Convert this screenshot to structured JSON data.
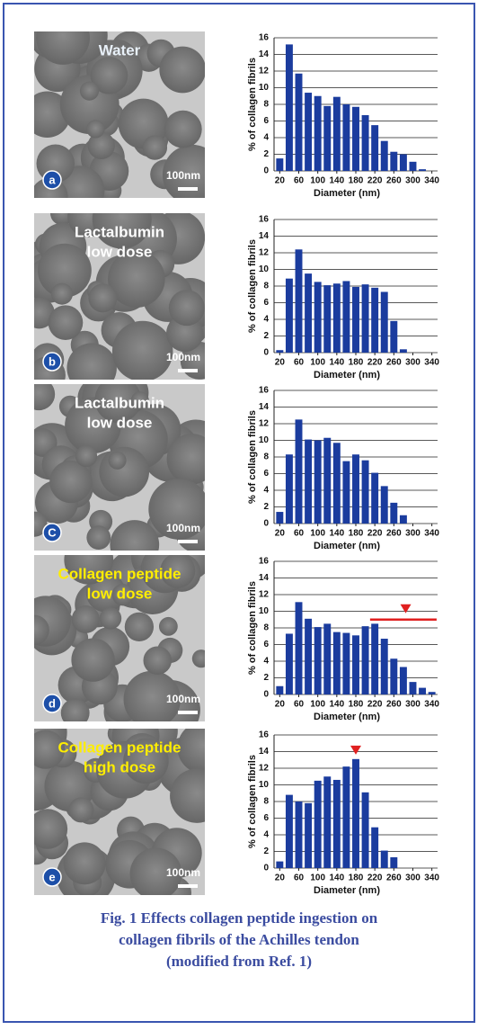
{
  "panels": [
    {
      "image_label": [
        "Water"
      ],
      "label_color": "#e8f0f8",
      "letter": "a",
      "scale": "100nm"
    },
    {
      "image_label": [
        "Lactalbumin",
        "low dose"
      ],
      "label_color": "#ffffff",
      "letter": "b",
      "scale": "100nm"
    },
    {
      "image_label": [
        "Lactalbumin",
        "low dose"
      ],
      "label_color": "#ffffff",
      "letter": "C",
      "scale": "100nm"
    },
    {
      "image_label": [
        "Collagen peptide",
        "low dose"
      ],
      "label_color": "#ffee00",
      "letter": "d",
      "scale": "100nm"
    },
    {
      "image_label": [
        "Collagen peptide",
        "high dose"
      ],
      "label_color": "#ffee00",
      "letter": "e",
      "scale": "100nm"
    }
  ],
  "caption": [
    "Fig. 1 Effects collagen peptide ingestion on",
    "collagen fibrils of the Achilles tendon",
    "(modified from Ref. 1)"
  ],
  "chart_data": [
    {
      "type": "bar",
      "ylabel": "% of collagen fibrils",
      "xlabel": "Diameter (nm)",
      "color": "#1b3c9e",
      "x": [
        20,
        40,
        60,
        80,
        100,
        120,
        140,
        160,
        180,
        200,
        220,
        240,
        260,
        280,
        300,
        320
      ],
      "values": [
        1.5,
        15.2,
        11.7,
        9.4,
        9.0,
        7.8,
        8.9,
        8.0,
        7.7,
        6.7,
        5.5,
        3.6,
        2.3,
        2.0,
        1.1,
        0.2
      ],
      "xlim": [
        8,
        352
      ],
      "xticks": [
        20,
        60,
        100,
        140,
        180,
        220,
        260,
        300,
        340
      ],
      "ylim": [
        0,
        16
      ],
      "yticks": [
        0,
        2,
        4,
        6,
        8,
        10,
        12,
        14,
        16
      ],
      "grid": true
    },
    {
      "type": "bar",
      "ylabel": "% of collagen fibrils",
      "xlabel": "Diameter (nm)",
      "color": "#1b3c9e",
      "x": [
        20,
        40,
        60,
        80,
        100,
        120,
        140,
        160,
        180,
        200,
        220,
        240,
        260,
        280
      ],
      "values": [
        0.3,
        8.9,
        12.4,
        9.5,
        8.5,
        8.1,
        8.3,
        8.6,
        7.9,
        8.2,
        7.8,
        7.3,
        3.8,
        0.4
      ],
      "xlim": [
        8,
        352
      ],
      "xticks": [
        20,
        60,
        100,
        140,
        180,
        220,
        260,
        300,
        340
      ],
      "ylim": [
        0,
        16
      ],
      "yticks": [
        0,
        2,
        4,
        6,
        8,
        10,
        12,
        14,
        16
      ],
      "grid": true
    },
    {
      "type": "bar",
      "ylabel": "% of collagen fibrils",
      "xlabel": "Diameter (nm)",
      "color": "#1b3c9e",
      "x": [
        20,
        40,
        60,
        80,
        100,
        120,
        140,
        160,
        180,
        200,
        220,
        240,
        260,
        280
      ],
      "values": [
        1.4,
        8.3,
        12.5,
        10.1,
        10.0,
        10.3,
        9.7,
        7.5,
        8.3,
        7.6,
        6.1,
        4.5,
        2.5,
        1.0
      ],
      "xlim": [
        8,
        352
      ],
      "xticks": [
        20,
        60,
        100,
        140,
        180,
        220,
        260,
        300,
        340
      ],
      "ylim": [
        0,
        16
      ],
      "yticks": [
        0,
        2,
        4,
        6,
        8,
        10,
        12,
        14,
        16
      ],
      "grid": true
    },
    {
      "type": "bar",
      "ylabel": "% of collagen fibrils",
      "xlabel": "Diameter (nm)",
      "color": "#1b3c9e",
      "x": [
        20,
        40,
        60,
        80,
        100,
        120,
        140,
        160,
        180,
        200,
        220,
        240,
        260,
        280,
        300,
        320,
        340
      ],
      "values": [
        1.0,
        7.3,
        11.1,
        9.1,
        8.1,
        8.5,
        7.5,
        7.4,
        7.1,
        8.2,
        8.5,
        6.7,
        4.3,
        3.3,
        1.5,
        0.8,
        0.3
      ],
      "xlim": [
        8,
        352
      ],
      "xticks": [
        20,
        60,
        100,
        140,
        180,
        220,
        260,
        300,
        340
      ],
      "ylim": [
        0,
        16
      ],
      "yticks": [
        0,
        2,
        4,
        6,
        8,
        10,
        12,
        14,
        16
      ],
      "grid": true,
      "reference_line": {
        "y": 9,
        "x1": 210,
        "x2": 350,
        "color": "#e02020"
      },
      "peak_marker": {
        "x": 285,
        "color": "#e02020"
      }
    },
    {
      "type": "bar",
      "ylabel": "% of collagen fibrils",
      "xlabel": "Diameter (nm)",
      "color": "#1b3c9e",
      "x": [
        20,
        40,
        60,
        80,
        100,
        120,
        140,
        160,
        180,
        200,
        220,
        240,
        260
      ],
      "values": [
        0.8,
        8.8,
        8.0,
        7.8,
        10.5,
        11.0,
        10.6,
        12.2,
        13.1,
        9.1,
        4.9,
        2.1,
        1.3
      ],
      "xlim": [
        8,
        352
      ],
      "xticks": [
        20,
        60,
        100,
        140,
        180,
        220,
        260,
        300,
        340
      ],
      "ylim": [
        0,
        16
      ],
      "yticks": [
        0,
        2,
        4,
        6,
        8,
        10,
        12,
        14,
        16
      ],
      "grid": true,
      "peak_marker": {
        "x": 180,
        "color": "#e02020"
      }
    }
  ]
}
